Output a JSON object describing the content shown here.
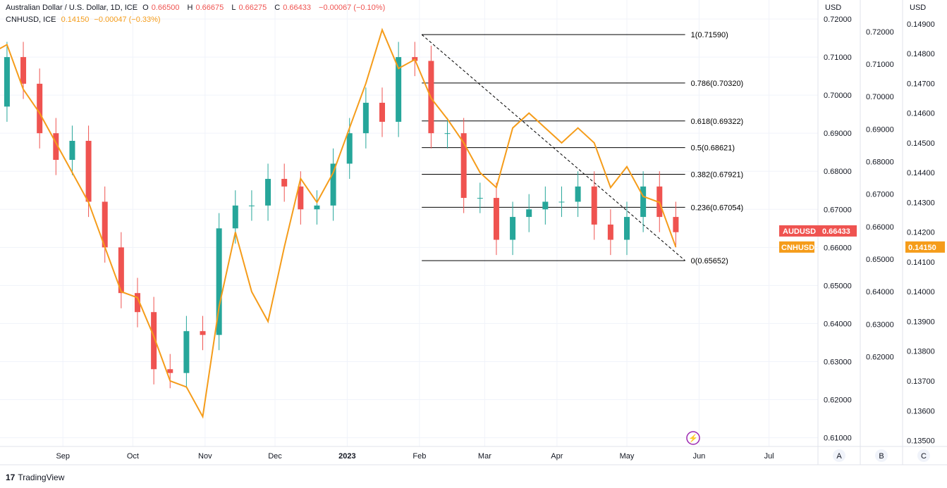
{
  "legend": {
    "main_name": "Australian Dollar / U.S. Dollar, 1D, ICE",
    "O_label": "O",
    "O": "0.66500",
    "H_label": "H",
    "H": "0.66675",
    "L_label": "L",
    "L": "0.66275",
    "C_label": "C",
    "C": "0.66433",
    "change": "−0.00067 (−0.10%)",
    "overlay_name": "CNHUSD, ICE",
    "overlay_value": "0.14150",
    "overlay_change": "−0.00047 (−0.33%)"
  },
  "branding": "TradingView",
  "colors": {
    "up": "#26a69a",
    "down": "#ef5350",
    "overlay": "#f59c1a",
    "grid": "#f0f3fa",
    "text": "#131722"
  },
  "chart_data": {
    "type": "candlestick+line",
    "series": [
      {
        "name": "AUDUSD",
        "axis": "USD (right)",
        "last_label": "AUDUSD",
        "last_value": "0.66433",
        "x": [
          "2022-08-01",
          "2022-08-08",
          "2022-08-15",
          "2022-08-22",
          "2022-08-29",
          "2022-09-05",
          "2022-09-12",
          "2022-09-19",
          "2022-09-26",
          "2022-10-03",
          "2022-10-10",
          "2022-10-17",
          "2022-10-24",
          "2022-10-31",
          "2022-11-07",
          "2022-11-14",
          "2022-11-21",
          "2022-11-28",
          "2022-12-05",
          "2022-12-12",
          "2022-12-19",
          "2022-12-26",
          "2023-01-02",
          "2023-01-09",
          "2023-01-16",
          "2023-01-23",
          "2023-01-30",
          "2023-02-06",
          "2023-02-13",
          "2023-02-20",
          "2023-02-27",
          "2023-03-06",
          "2023-03-13",
          "2023-03-20",
          "2023-03-27",
          "2023-04-03",
          "2023-04-10",
          "2023-04-17",
          "2023-04-24",
          "2023-05-01",
          "2023-05-08",
          "2023-05-15",
          "2023-05-22"
        ],
        "close": [
          0.697,
          0.71,
          0.703,
          0.69,
          0.683,
          0.688,
          0.672,
          0.66,
          0.648,
          0.643,
          0.628,
          0.627,
          0.638,
          0.637,
          0.665,
          0.671,
          0.671,
          0.678,
          0.676,
          0.67,
          0.671,
          0.682,
          0.69,
          0.698,
          0.693,
          0.71,
          0.709,
          0.69,
          0.69,
          0.673,
          0.673,
          0.662,
          0.668,
          0.67,
          0.672,
          0.672,
          0.676,
          0.666,
          0.662,
          0.668,
          0.676,
          0.668,
          0.664
        ]
      },
      {
        "name": "CNHUSD",
        "axis": "USD (far right)",
        "last_label": "CNHUSD",
        "last_value": "0.14150",
        "x": [
          "2022-08-01",
          "2022-08-08",
          "2022-08-15",
          "2022-08-22",
          "2022-08-29",
          "2022-09-05",
          "2022-09-12",
          "2022-09-19",
          "2022-09-26",
          "2022-10-03",
          "2022-10-10",
          "2022-10-17",
          "2022-10-24",
          "2022-10-31",
          "2022-11-07",
          "2022-11-14",
          "2022-11-21",
          "2022-11-28",
          "2022-12-05",
          "2022-12-12",
          "2022-12-19",
          "2022-12-26",
          "2023-01-02",
          "2023-01-09",
          "2023-01-16",
          "2023-01-23",
          "2023-01-30",
          "2023-02-06",
          "2023-02-13",
          "2023-02-20",
          "2023-02-27",
          "2023-03-06",
          "2023-03-13",
          "2023-03-20",
          "2023-03-27",
          "2023-04-03",
          "2023-04-10",
          "2023-04-17",
          "2023-04-24",
          "2023-05-01",
          "2023-05-08",
          "2023-05-15",
          "2023-05-22"
        ],
        "values": [
          0.148,
          0.1483,
          0.1468,
          0.146,
          0.145,
          0.144,
          0.143,
          0.1415,
          0.14,
          0.1398,
          0.1385,
          0.137,
          0.1368,
          0.1358,
          0.1395,
          0.142,
          0.14,
          0.139,
          0.1415,
          0.1438,
          0.143,
          0.144,
          0.1455,
          0.147,
          0.1488,
          0.1475,
          0.1478,
          0.1465,
          0.1458,
          0.145,
          0.144,
          0.1435,
          0.1455,
          0.146,
          0.1455,
          0.145,
          0.1455,
          0.145,
          0.1435,
          0.1442,
          0.1432,
          0.143,
          0.1415
        ]
      }
    ],
    "fibonacci": {
      "levels": [
        {
          "label": "1(0.71590)",
          "value": 0.7159
        },
        {
          "label": "0.786(0.70320)",
          "value": 0.7032
        },
        {
          "label": "0.618(0.69322)",
          "value": 0.69322
        },
        {
          "label": "0.5(0.68621)",
          "value": 0.68621
        },
        {
          "label": "0.382(0.67921)",
          "value": 0.67921
        },
        {
          "label": "0.236(0.67054)",
          "value": 0.67054
        },
        {
          "label": "0(0.65652)",
          "value": 0.65652
        }
      ],
      "start_date": "2023-02-02",
      "end_date": "2023-05-26"
    },
    "x_ticks": [
      {
        "label": "Sep",
        "date": "2022-09-01",
        "bold": false
      },
      {
        "label": "Oct",
        "date": "2022-10-01",
        "bold": false
      },
      {
        "label": "Nov",
        "date": "2022-11-01",
        "bold": false
      },
      {
        "label": "Dec",
        "date": "2022-12-01",
        "bold": false
      },
      {
        "label": "2023",
        "date": "2023-01-01",
        "bold": true
      },
      {
        "label": "Feb",
        "date": "2023-02-01",
        "bold": false
      },
      {
        "label": "Mar",
        "date": "2023-03-01",
        "bold": false
      },
      {
        "label": "Apr",
        "date": "2023-04-01",
        "bold": false
      },
      {
        "label": "May",
        "date": "2023-05-01",
        "bold": false
      },
      {
        "label": "Jun",
        "date": "2023-06-01",
        "bold": false
      },
      {
        "label": "Jul",
        "date": "2023-07-01",
        "bold": false
      }
    ],
    "x_range": [
      "2022-08-05",
      "2023-07-22"
    ],
    "y_left": {
      "unit": "USD",
      "ylim": [
        0.6077,
        0.725
      ],
      "ticks": [
        "0.72000",
        "0.71000",
        "0.70000",
        "0.69000",
        "0.68000",
        "0.67000",
        "0.66000",
        "0.65000",
        "0.64000",
        "0.63000",
        "0.62000",
        "0.61000"
      ]
    },
    "y_right": {
      "unit": "USD",
      "ylim": [
        0.1348,
        0.1498
      ],
      "ticks": [
        "0.14900",
        "0.14800",
        "0.14700",
        "0.14600",
        "0.14500",
        "0.14400",
        "0.14300",
        "0.14200",
        "0.14100",
        "0.14000",
        "0.13900",
        "0.13800",
        "0.13700",
        "0.13600",
        "0.13500"
      ]
    },
    "middle_axis": {
      "ticks": [
        "0.72000",
        "0.71000",
        "0.70000",
        "0.69000",
        "0.68000",
        "0.67000",
        "0.66000",
        "0.65000",
        "0.64000",
        "0.63000",
        "0.62000"
      ]
    },
    "scale_buttons": [
      "A",
      "B",
      "C"
    ],
    "grid": true
  }
}
